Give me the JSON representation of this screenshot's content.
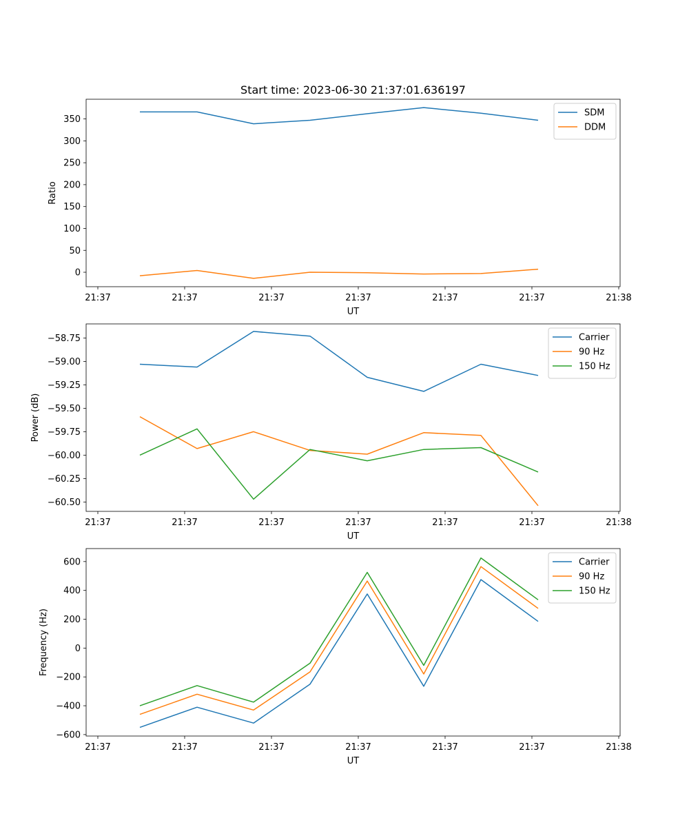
{
  "chart_data": [
    {
      "type": "line",
      "title": "Start time: 2023-06-30 21:37:01.636197",
      "xlabel": "UT",
      "ylabel": "Ratio",
      "x_tick_labels": [
        "21:37",
        "21:37",
        "21:37",
        "21:37",
        "21:37",
        "21:37",
        "21:38"
      ],
      "y_ticks": [
        0,
        50,
        100,
        150,
        200,
        250,
        300,
        350
      ],
      "y_tick_labels": [
        "0",
        "50",
        "100",
        "150",
        "200",
        "250",
        "300",
        "350"
      ],
      "ylim": [
        -33,
        395
      ],
      "legend_position": "upper right",
      "series": [
        {
          "name": "SDM",
          "color": "#1f77b4",
          "values": [
            366,
            366,
            339,
            347,
            362,
            376,
            363,
            347
          ]
        },
        {
          "name": "DDM",
          "color": "#ff7f0e",
          "values": [
            -8,
            4,
            -14,
            0,
            -1,
            -4,
            -3,
            7
          ]
        }
      ]
    },
    {
      "type": "line",
      "title": "",
      "xlabel": "UT",
      "ylabel": "Power (dB)",
      "x_tick_labels": [
        "21:37",
        "21:37",
        "21:37",
        "21:37",
        "21:37",
        "21:37",
        "21:38"
      ],
      "y_ticks": [
        -58.75,
        -59.0,
        -59.25,
        -59.5,
        -59.75,
        -60.0,
        -60.25,
        -60.5
      ],
      "y_tick_labels": [
        "−58.75",
        "−59.00",
        "−59.25",
        "−59.50",
        "−59.75",
        "−60.00",
        "−60.25",
        "−60.50"
      ],
      "ylim": [
        -60.6,
        -58.6
      ],
      "legend_position": "upper right",
      "series": [
        {
          "name": "Carrier",
          "color": "#1f77b4",
          "values": [
            -59.03,
            -59.06,
            -58.68,
            -58.73,
            -59.17,
            -59.32,
            -59.03,
            -59.15
          ]
        },
        {
          "name": "90 Hz",
          "color": "#ff7f0e",
          "values": [
            -59.59,
            -59.93,
            -59.75,
            -59.95,
            -59.99,
            -59.76,
            -59.79,
            -60.54
          ]
        },
        {
          "name": "150 Hz",
          "color": "#2ca02c",
          "values": [
            -60.0,
            -59.72,
            -60.47,
            -59.94,
            -60.06,
            -59.94,
            -59.92,
            -60.18
          ]
        }
      ]
    },
    {
      "type": "line",
      "title": "",
      "xlabel": "UT",
      "ylabel": "Frequency (Hz)",
      "x_tick_labels": [
        "21:37",
        "21:37",
        "21:37",
        "21:37",
        "21:37",
        "21:37",
        "21:38"
      ],
      "y_ticks": [
        -600,
        -400,
        -200,
        0,
        200,
        400,
        600
      ],
      "y_tick_labels": [
        "−600",
        "−400",
        "−200",
        "0",
        "200",
        "400",
        "600"
      ],
      "ylim": [
        -610,
        690
      ],
      "legend_position": "upper right",
      "series": [
        {
          "name": "Carrier",
          "color": "#1f77b4",
          "values": [
            -550,
            -410,
            -520,
            -250,
            375,
            -265,
            475,
            185
          ]
        },
        {
          "name": "90 Hz",
          "color": "#ff7f0e",
          "values": [
            -460,
            -320,
            -430,
            -165,
            465,
            -180,
            565,
            275
          ]
        },
        {
          "name": "150 Hz",
          "color": "#2ca02c",
          "values": [
            -400,
            -260,
            -375,
            -105,
            525,
            -120,
            625,
            335
          ]
        }
      ]
    }
  ]
}
